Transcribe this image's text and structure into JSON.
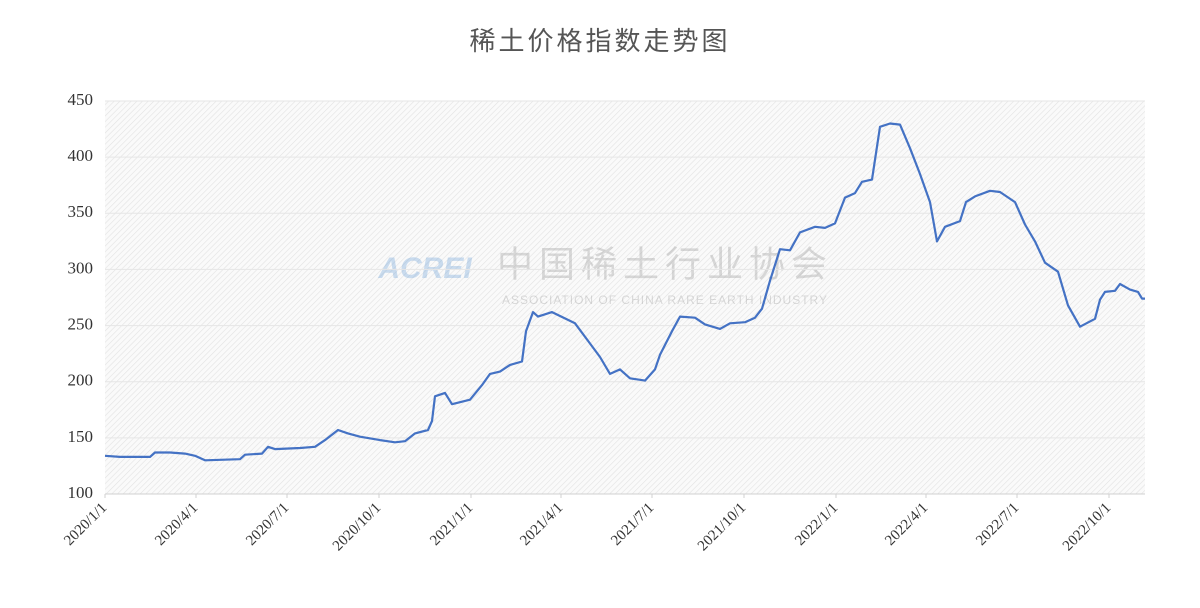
{
  "chart_data": {
    "type": "line",
    "title": "稀土价格指数走势图",
    "watermark": {
      "logo": "ACREI",
      "name": "中国稀土行业协会",
      "subtitle": "ASSOCIATION OF CHINA RARE EARTH INDUSTRY"
    },
    "x": [
      "2020/1/1",
      "2020/1/16",
      "2020/2/15",
      "2020/2/20",
      "2020/3/6",
      "2020/3/21",
      "2020/3/31",
      "2020/4/10",
      "2020/5/15",
      "2020/5/20",
      "2020/6/6",
      "2020/6/12",
      "2020/6/19",
      "2020/7/14",
      "2020/7/29",
      "2020/8/8",
      "2020/8/21",
      "2020/8/31",
      "2020/9/12",
      "2020/10/2",
      "2020/10/17",
      "2020/10/27",
      "2020/11/6",
      "2020/11/19",
      "2020/11/23",
      "2020/11/26",
      "2020/12/6",
      "2020/12/13",
      "2020/12/31",
      "2021/1/12",
      "2021/1/20",
      "2021/1/30",
      "2021/2/9",
      "2021/2/21",
      "2021/2/25",
      "2021/3/4",
      "2021/3/9",
      "2021/3/23",
      "2021/4/15",
      "2021/4/30",
      "2021/5/10",
      "2021/5/20",
      "2021/5/30",
      "2021/6/9",
      "2021/6/24",
      "2021/7/4",
      "2021/7/9",
      "2021/7/21",
      "2021/7/29",
      "2021/8/13",
      "2021/8/23",
      "2021/9/7",
      "2021/9/17",
      "2021/10/2",
      "2021/10/12",
      "2021/10/19",
      "2021/10/27",
      "2021/11/6",
      "2021/11/16",
      "2021/11/26",
      "2021/12/11",
      "2021/12/21",
      "2021/12/31",
      "2022/1/10",
      "2022/1/20",
      "2022/1/27",
      "2022/2/6",
      "2022/2/14",
      "2022/2/24",
      "2022/3/6",
      "2022/3/16",
      "2022/3/26",
      "2022/4/5",
      "2022/4/12",
      "2022/4/20",
      "2022/5/5",
      "2022/5/11",
      "2022/5/20",
      "2022/6/4",
      "2022/6/14",
      "2022/6/29",
      "2022/7/9",
      "2022/7/19",
      "2022/7/29",
      "2022/8/11",
      "2022/8/21",
      "2022/9/2",
      "2022/9/17",
      "2022/9/22",
      "2022/9/27",
      "2022/10/7",
      "2022/10/12",
      "2022/10/22",
      "2022/10/30",
      "2022/11/3",
      "2022/11/6"
    ],
    "series": [
      {
        "name": "稀土价格指数",
        "color": "#4472c4",
        "values": [
          134,
          133,
          133,
          137,
          137,
          136,
          134,
          130,
          131,
          135,
          136,
          142,
          140,
          141,
          142,
          148,
          157,
          154,
          151,
          148,
          146,
          147,
          154,
          157,
          165,
          187,
          190,
          180,
          184,
          197,
          207,
          209,
          215,
          218,
          245,
          262,
          258,
          262,
          252,
          234,
          222,
          207,
          211,
          203,
          201,
          211,
          224,
          245,
          258,
          257,
          251,
          247,
          252,
          253,
          257,
          265,
          290,
          318,
          317,
          333,
          338,
          337,
          341,
          364,
          368,
          378,
          380,
          427,
          430,
          429,
          408,
          385,
          360,
          325,
          338,
          343,
          360,
          365,
          370,
          369,
          360,
          340,
          325,
          306,
          298,
          268,
          249,
          256,
          273,
          280,
          281,
          287,
          282,
          280,
          274,
          274
        ]
      }
    ],
    "xlim": [
      "2020/1/1",
      "2022/11/6"
    ],
    "xticks": [
      "2020/1/1",
      "2020/4/1",
      "2020/7/1",
      "2020/10/1",
      "2021/1/1",
      "2021/4/1",
      "2021/7/1",
      "2021/10/1",
      "2022/1/1",
      "2022/4/1",
      "2022/7/1",
      "2022/10/1"
    ],
    "ylim": [
      100,
      450
    ],
    "yticks": [
      100,
      150,
      200,
      250,
      300,
      350,
      400,
      450
    ],
    "grid": true
  }
}
